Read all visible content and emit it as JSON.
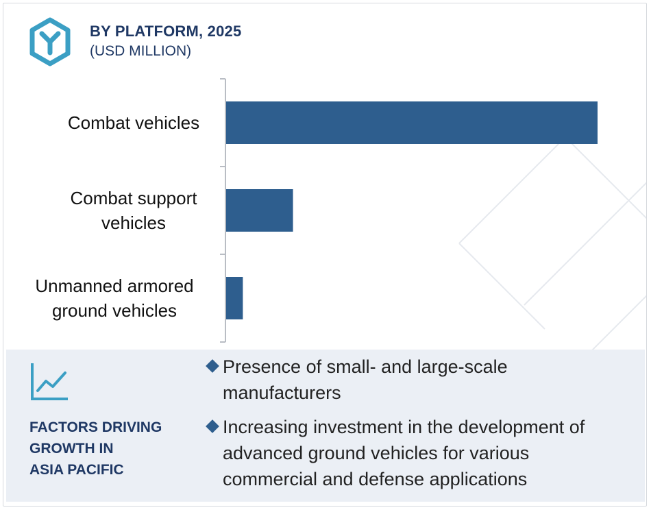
{
  "header": {
    "logo_icon": "hexagon-y-logo-icon",
    "title": "BY PLATFORM, 2025",
    "subtitle": "(USD MILLION)"
  },
  "chart_data": {
    "type": "bar",
    "orientation": "horizontal",
    "title": "BY PLATFORM, 2025",
    "subtitle": "(USD MILLION)",
    "categories": [
      [
        "Combat vehicles"
      ],
      [
        "Combat support",
        "vehicles"
      ],
      [
        "Unmanned armored",
        "ground vehicles"
      ]
    ],
    "values": [
      100,
      18,
      4.5
    ],
    "value_scale": "relative (no axis values shown)",
    "xlim": [
      0,
      100
    ],
    "bar_color": "#2e5e8e",
    "grid": false,
    "legend": "none"
  },
  "factors": {
    "icon": "trend-line-chart-icon",
    "title": "FACTORS DRIVING GROWTH IN ASIA PACIFIC",
    "title_lines": [
      "FACTORS DRIVING",
      "GROWTH IN",
      "ASIA PACIFIC"
    ],
    "bullets": [
      [
        "Presence of small- and large-scale",
        "manufacturers"
      ],
      [
        "Increasing investment in the development of",
        "advanced ground vehicles for various",
        "commercial and defense applications"
      ]
    ]
  },
  "colors": {
    "accent": "#3b9fc4",
    "title": "#1f3864",
    "bar": "#2e5e8e",
    "panel": "#ebeff5"
  }
}
